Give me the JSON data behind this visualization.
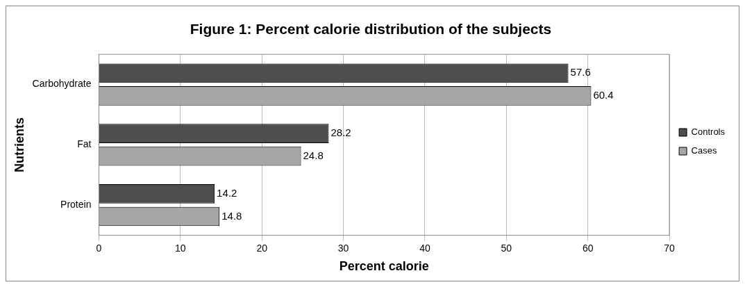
{
  "chart_data": {
    "type": "bar",
    "orientation": "horizontal",
    "title": "Figure 1: Percent calorie distribution of the subjects",
    "xlabel": "Percent calorie",
    "ylabel": "Nutrients",
    "categories": [
      "Carbohydrate",
      "Fat",
      "Protein"
    ],
    "series": [
      {
        "name": "Controls",
        "color": "#4d4d4d",
        "values": [
          57.6,
          28.2,
          14.2
        ]
      },
      {
        "name": "Cases",
        "color": "#a6a6a6",
        "values": [
          60.4,
          24.8,
          14.8
        ]
      }
    ],
    "xlim": [
      0,
      70
    ],
    "xticks": [
      0,
      10,
      20,
      30,
      40,
      50,
      60,
      70
    ],
    "grid": "x",
    "legend": "right",
    "data_labels": true
  }
}
